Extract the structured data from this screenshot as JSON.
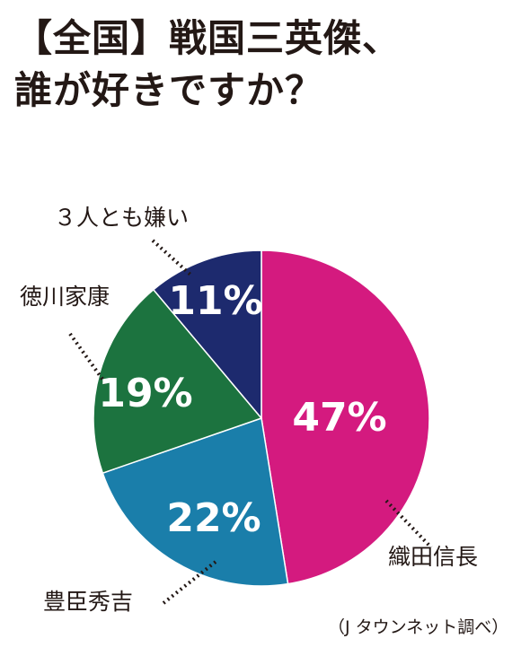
{
  "title_lines": [
    "【全国】戦国三英傑、",
    "誰が好きですか？"
  ],
  "source_note": "（J タウンネット調べ）",
  "chart_data": {
    "type": "pie",
    "slices": [
      {
        "label": "織田信長",
        "value": 47,
        "value_label": "47%",
        "color": "#d41a7f"
      },
      {
        "label": "豊臣秀吉",
        "value": 22,
        "value_label": "22%",
        "color": "#1a7eaa"
      },
      {
        "label": "徳川家康",
        "value": 19,
        "value_label": "19%",
        "color": "#1c733f"
      },
      {
        "label": "３人とも嫌い",
        "value": 11,
        "value_label": "11%",
        "color": "#1d2a6e"
      }
    ]
  }
}
